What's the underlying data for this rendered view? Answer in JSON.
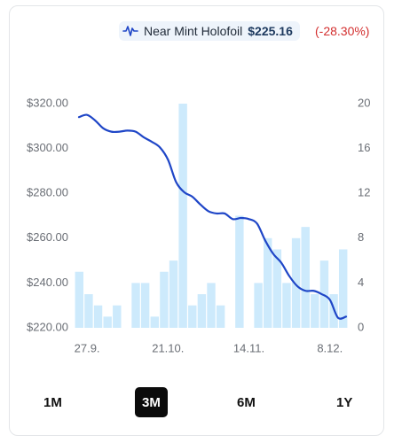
{
  "legend": {
    "icon": "price-line-icon",
    "label": "Near Mint Holofoil",
    "price": "$225.16",
    "change": "(-28.30%)",
    "change_color": "#d32f2f"
  },
  "ranges": {
    "items": [
      "1M",
      "3M",
      "6M",
      "1Y"
    ],
    "active": "3M"
  },
  "colors": {
    "line": "#1f46c7",
    "bars": "#cdeafc"
  },
  "chart_data": {
    "type": "bar+line",
    "title": "",
    "xlabel": "",
    "ylabel": "",
    "x_tick_labels": [
      "27.9.",
      "21.10.",
      "14.11.",
      "8.12."
    ],
    "x_tick_indices": [
      1,
      11,
      21,
      31
    ],
    "y_left": {
      "range": [
        220,
        320
      ],
      "tick_labels": [
        "$320.00",
        "$300.00",
        "$280.00",
        "$260.00",
        "$240.00",
        "$220.00"
      ]
    },
    "y_right": {
      "range": [
        0,
        20
      ],
      "tick_labels": [
        "20",
        "16",
        "12",
        "8",
        "4",
        "0"
      ]
    },
    "grid": false,
    "legend_position": "top-center",
    "series": [
      {
        "kind": "line",
        "axis": "left",
        "values": [
          314,
          315,
          312.5,
          309,
          307.5,
          307.5,
          308,
          307.5,
          305,
          303,
          300.5,
          295,
          285,
          280.5,
          278.5,
          275,
          272,
          271,
          271,
          268.5,
          269,
          268.5,
          266.5,
          259,
          253,
          249,
          243,
          238.5,
          236.5,
          236.5,
          235,
          232.5,
          224.5,
          225
        ]
      },
      {
        "kind": "bar",
        "axis": "right",
        "values": [
          5,
          3,
          2,
          1,
          2,
          0,
          4,
          4,
          1,
          5,
          6,
          20,
          2,
          3,
          4,
          2,
          0,
          10,
          0,
          4,
          8,
          7,
          4,
          8,
          9,
          3,
          6,
          3,
          7
        ]
      }
    ]
  }
}
